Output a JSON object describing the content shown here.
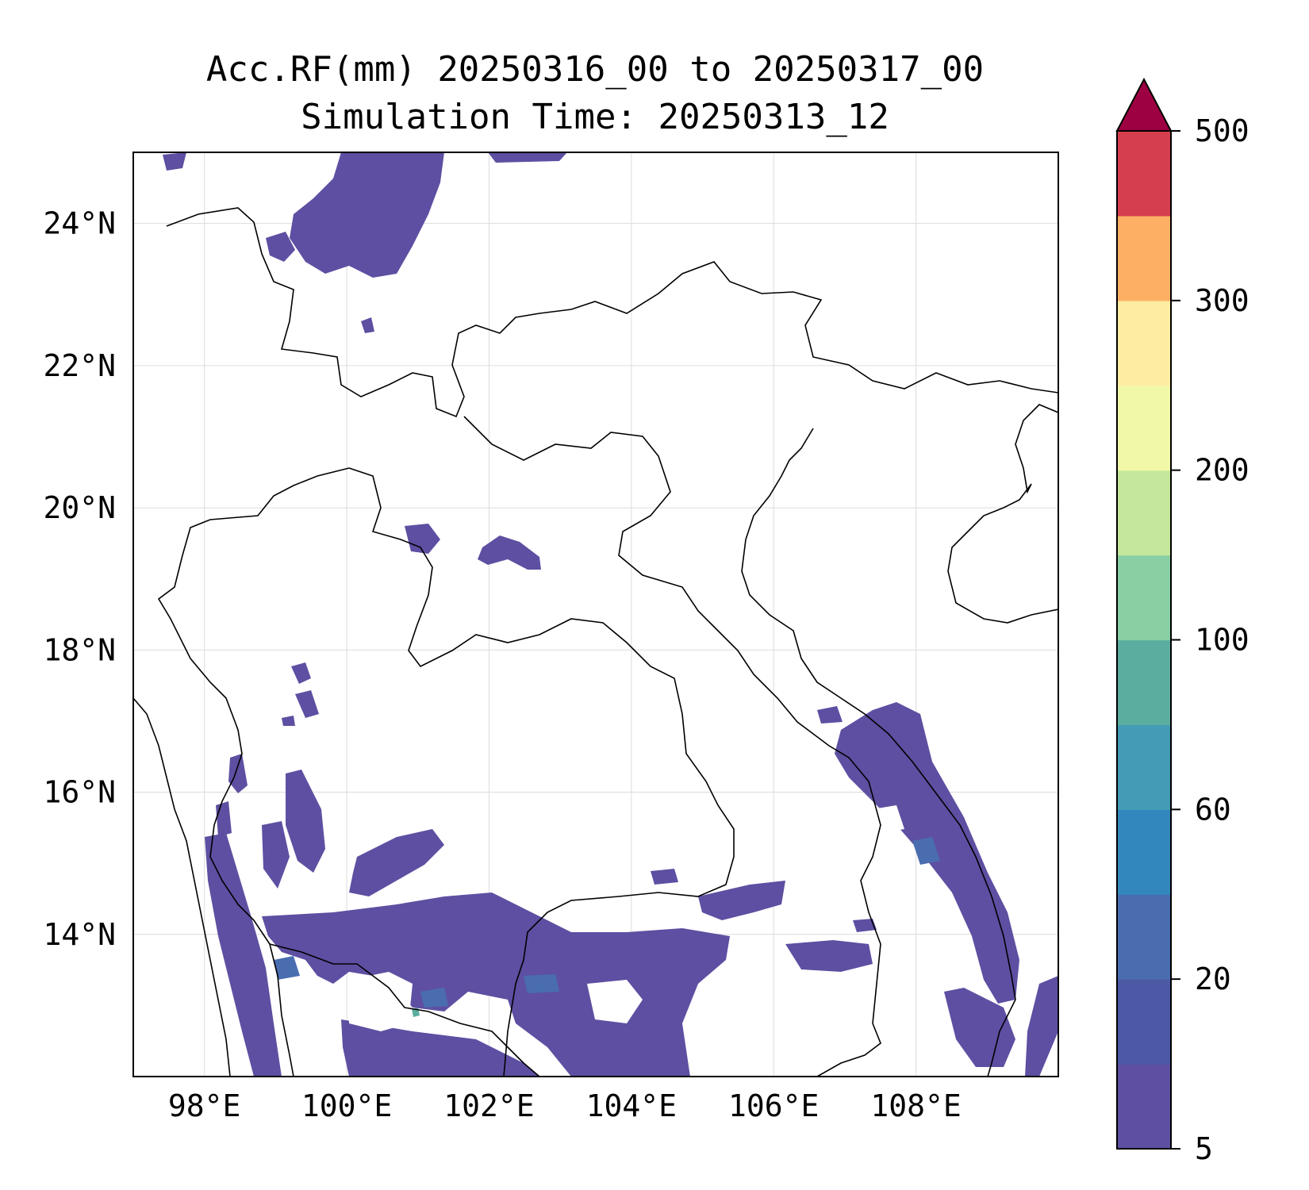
{
  "title_line1": "Acc.RF(mm) 20250316_00 to 20250317_00",
  "title_line2": "Simulation Time: 20250313_12",
  "map": {
    "lon_range": [
      97,
      110
    ],
    "lat_range": [
      12,
      25
    ],
    "lon_ticks": [
      {
        "value": 98,
        "label": "98°E"
      },
      {
        "value": 100,
        "label": "100°E"
      },
      {
        "value": 102,
        "label": "102°E"
      },
      {
        "value": 104,
        "label": "104°E"
      },
      {
        "value": 106,
        "label": "106°E"
      },
      {
        "value": 108,
        "label": "108°E"
      }
    ],
    "lat_ticks": [
      {
        "value": 14,
        "label": "14°N"
      },
      {
        "value": 16,
        "label": "16°N"
      },
      {
        "value": 18,
        "label": "18°N"
      },
      {
        "value": 20,
        "label": "20°N"
      },
      {
        "value": 22,
        "label": "22°N"
      },
      {
        "value": 24,
        "label": "24°N"
      }
    ],
    "grid": true,
    "rain_fill_color": "#5e4fa2"
  },
  "colorbar": {
    "extend": "max",
    "extend_color": "#9e0142",
    "colors": [
      "#5e4fa2",
      "#4e59a6",
      "#4a6db0",
      "#3288bd",
      "#439bb5",
      "#5aae9f",
      "#88cfa4",
      "#c5e79c",
      "#f1f9a9",
      "#feeda1",
      "#fdb063",
      "#d53e4f"
    ],
    "tick_labels": [
      "5",
      "20",
      "60",
      "100",
      "200",
      "300",
      "500"
    ]
  }
}
